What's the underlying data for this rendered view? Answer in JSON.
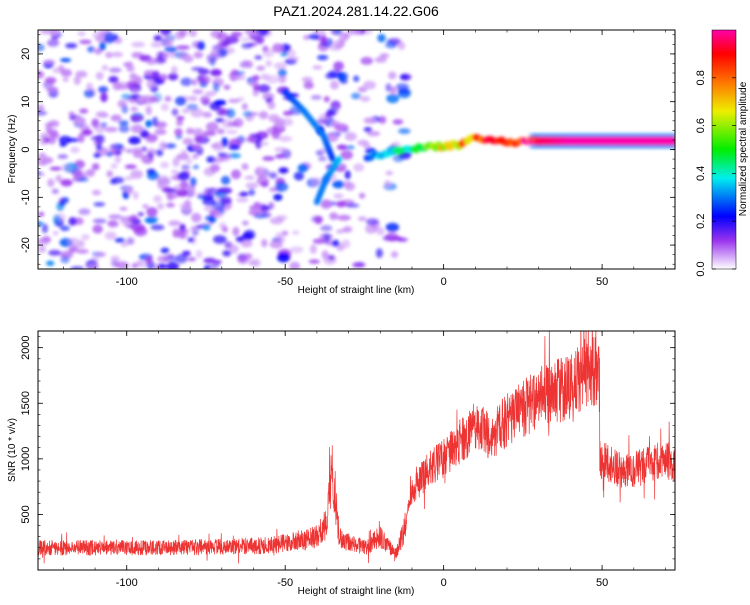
{
  "figure": {
    "title": "PAZ1.2024.281.14.22.G06"
  },
  "chart_data": [
    {
      "type": "heatmap",
      "xlabel": "Height of straight line (km)",
      "ylabel": "Frequency (Hz)",
      "xlim": [
        -128,
        73
      ],
      "ylim": [
        -25,
        25
      ],
      "xticks": [
        -100,
        -50,
        0,
        50
      ],
      "yticks": [
        -20,
        -10,
        0,
        10,
        20
      ],
      "grid": false,
      "colorbar": {
        "label": "Normalized spectral amplitude",
        "range": [
          0,
          1
        ],
        "ticks": [
          "0.0",
          "0.2",
          "0.4",
          "0.6",
          "0.8"
        ]
      },
      "noise_region": {
        "x_range": [
          -128,
          -12
        ],
        "amplitude_range": [
          0.02,
          0.3
        ]
      },
      "ridge": {
        "description": "signal ridge of frequency versus height",
        "points": [
          {
            "x": -50,
            "y": 12,
            "v": 0.25
          },
          {
            "x": -44,
            "y": 8,
            "v": 0.3
          },
          {
            "x": -38,
            "y": 3,
            "v": 0.3
          },
          {
            "x": -35,
            "y": -2,
            "v": 0.25
          },
          {
            "x": -33,
            "y": -2,
            "v": 0.35
          },
          {
            "x": -37,
            "y": -6,
            "v": 0.3
          },
          {
            "x": -40,
            "y": -11,
            "v": 0.3
          },
          {
            "x": -24,
            "y": -1.5,
            "v": 0.3
          },
          {
            "x": -13,
            "y": 0,
            "v": 0.45
          },
          {
            "x": -5,
            "y": 0.5,
            "v": 0.6
          },
          {
            "x": 0,
            "y": 0.7,
            "v": 0.75
          },
          {
            "x": 5,
            "y": 1.0,
            "v": 0.8
          },
          {
            "x": 10,
            "y": 2.5,
            "v": 0.9
          },
          {
            "x": 20,
            "y": 1.5,
            "v": 0.85
          },
          {
            "x": 30,
            "y": 1.8,
            "v": 0.95
          },
          {
            "x": 40,
            "y": 1.8,
            "v": 1.0
          },
          {
            "x": 50,
            "y": 1.8,
            "v": 1.0
          },
          {
            "x": 60,
            "y": 1.8,
            "v": 1.0
          },
          {
            "x": 73,
            "y": 1.8,
            "v": 1.0
          }
        ]
      }
    },
    {
      "type": "line",
      "xlabel": "Height of straight line (km)",
      "ylabel": "SNR (10 * v/v)",
      "xlim": [
        -128,
        73
      ],
      "ylim": [
        0,
        2150
      ],
      "xticks": [
        -100,
        -50,
        0,
        50
      ],
      "yticks": [
        500,
        1000,
        1500,
        2000
      ],
      "grid": false,
      "color": "#ee3333",
      "series": [
        {
          "x": [
            -128,
            -110,
            -90,
            -70,
            -55,
            -45,
            -40,
            -37,
            -35,
            -33,
            -30,
            -25,
            -20,
            -15,
            -12,
            -10,
            -5,
            0,
            5,
            10,
            15,
            20,
            25,
            30,
            35,
            40,
            45,
            49,
            50,
            55,
            60,
            65,
            70,
            73
          ],
          "y": [
            200,
            200,
            200,
            210,
            220,
            260,
            300,
            420,
            900,
            300,
            250,
            200,
            300,
            150,
            400,
            700,
            900,
            1000,
            1150,
            1300,
            1200,
            1350,
            1450,
            1550,
            1600,
            1650,
            1780,
            1800,
            1000,
            900,
            900,
            950,
            1000,
            950
          ]
        }
      ]
    }
  ]
}
